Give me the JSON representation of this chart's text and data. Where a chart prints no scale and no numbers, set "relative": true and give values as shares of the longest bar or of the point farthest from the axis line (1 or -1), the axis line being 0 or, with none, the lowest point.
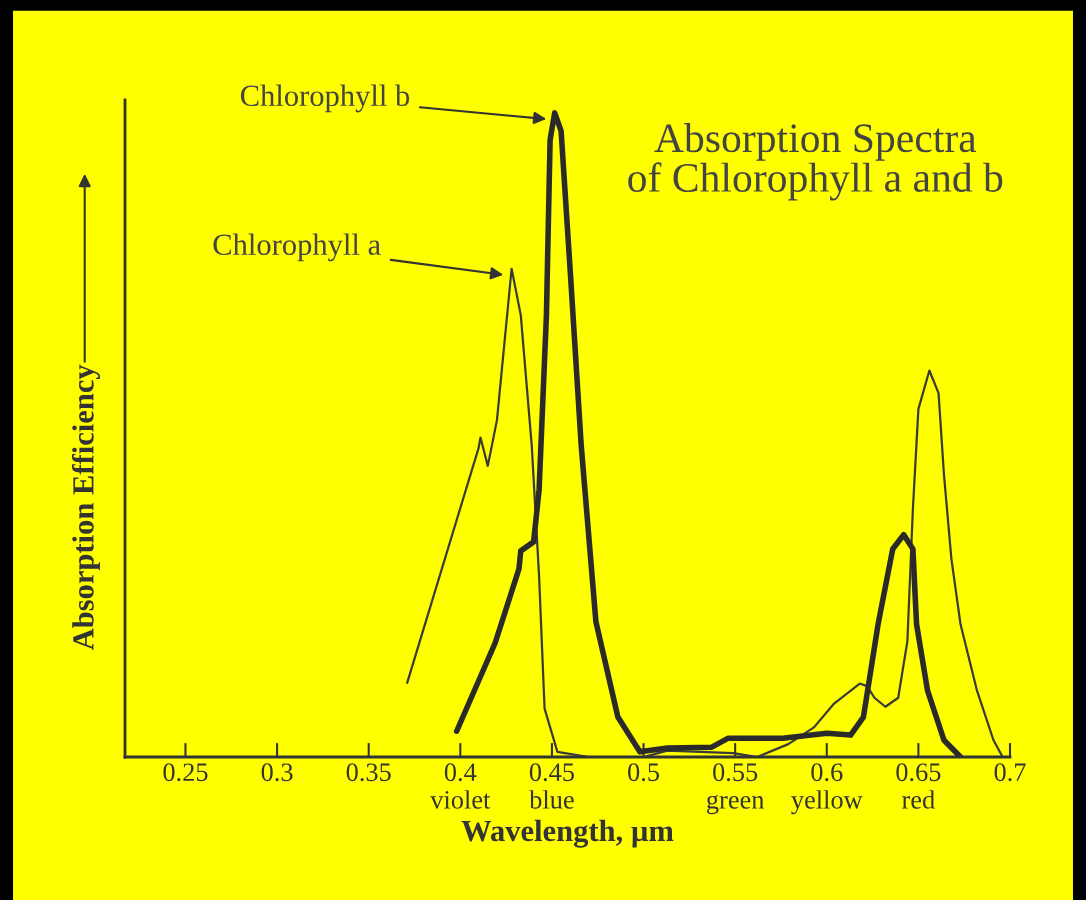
{
  "chart_data": {
    "type": "line",
    "title": "Absorption Spectra\nof Chlorophyll a and b",
    "xlabel": "Wavelength, µm",
    "ylabel": "Absorption Efficiency",
    "relative": true,
    "xlim": [
      0.217,
      0.7
    ],
    "xticks": [
      0.25,
      0.3,
      0.35,
      {
        "value": 0.4,
        "label": "0.4\nviolet"
      },
      {
        "value": 0.45,
        "label": "0.45\nblue"
      },
      0.5,
      {
        "value": 0.55,
        "label": "0.55\ngreen"
      },
      {
        "value": 0.6,
        "label": "0.6\nyellow"
      },
      {
        "value": 0.65,
        "label": "0.65\nred"
      },
      0.7
    ],
    "series": [
      {
        "name": "Chlorophyll a",
        "color": "#3a3a3a",
        "x": [
          0.371,
          0.41,
          0.411,
          0.415,
          0.42,
          0.428,
          0.433,
          0.439,
          0.443,
          0.446,
          0.453,
          0.47,
          0.5,
          0.513,
          0.549,
          0.562,
          0.579,
          0.593,
          0.604,
          0.618,
          0.622,
          0.626,
          0.632,
          0.639,
          0.644,
          0.647,
          0.65,
          0.656,
          0.661,
          0.664,
          0.668,
          0.673,
          0.682,
          0.691,
          0.696
        ],
        "values": [
          0.115,
          0.48,
          0.496,
          0.452,
          0.523,
          0.758,
          0.686,
          0.483,
          0.28,
          0.075,
          0.008,
          0.0,
          0.0,
          0.01,
          0.006,
          0.0,
          0.02,
          0.046,
          0.083,
          0.114,
          0.11,
          0.092,
          0.078,
          0.092,
          0.18,
          0.385,
          0.54,
          0.6,
          0.565,
          0.437,
          0.308,
          0.206,
          0.103,
          0.026,
          0.0
        ]
      },
      {
        "name": "Chlorophyll b",
        "color": "#2a2a2a",
        "x": [
          0.398,
          0.419,
          0.432,
          0.433,
          0.44,
          0.443,
          0.447,
          0.449,
          0.4515,
          0.455,
          0.46,
          0.466,
          0.474,
          0.486,
          0.498,
          0.513,
          0.537,
          0.546,
          0.576,
          0.6,
          0.613,
          0.62,
          0.628,
          0.636,
          0.642,
          0.647,
          0.649,
          0.655,
          0.664,
          0.673
        ],
        "values": [
          0.04,
          0.177,
          0.292,
          0.32,
          0.334,
          0.415,
          0.686,
          0.958,
          1.0,
          0.972,
          0.754,
          0.483,
          0.21,
          0.062,
          0.008,
          0.014,
          0.015,
          0.029,
          0.029,
          0.037,
          0.034,
          0.062,
          0.206,
          0.323,
          0.345,
          0.323,
          0.206,
          0.103,
          0.026,
          0.0
        ]
      }
    ],
    "line_style": "solid",
    "marker": "none",
    "grid": false,
    "legend": "top left"
  }
}
